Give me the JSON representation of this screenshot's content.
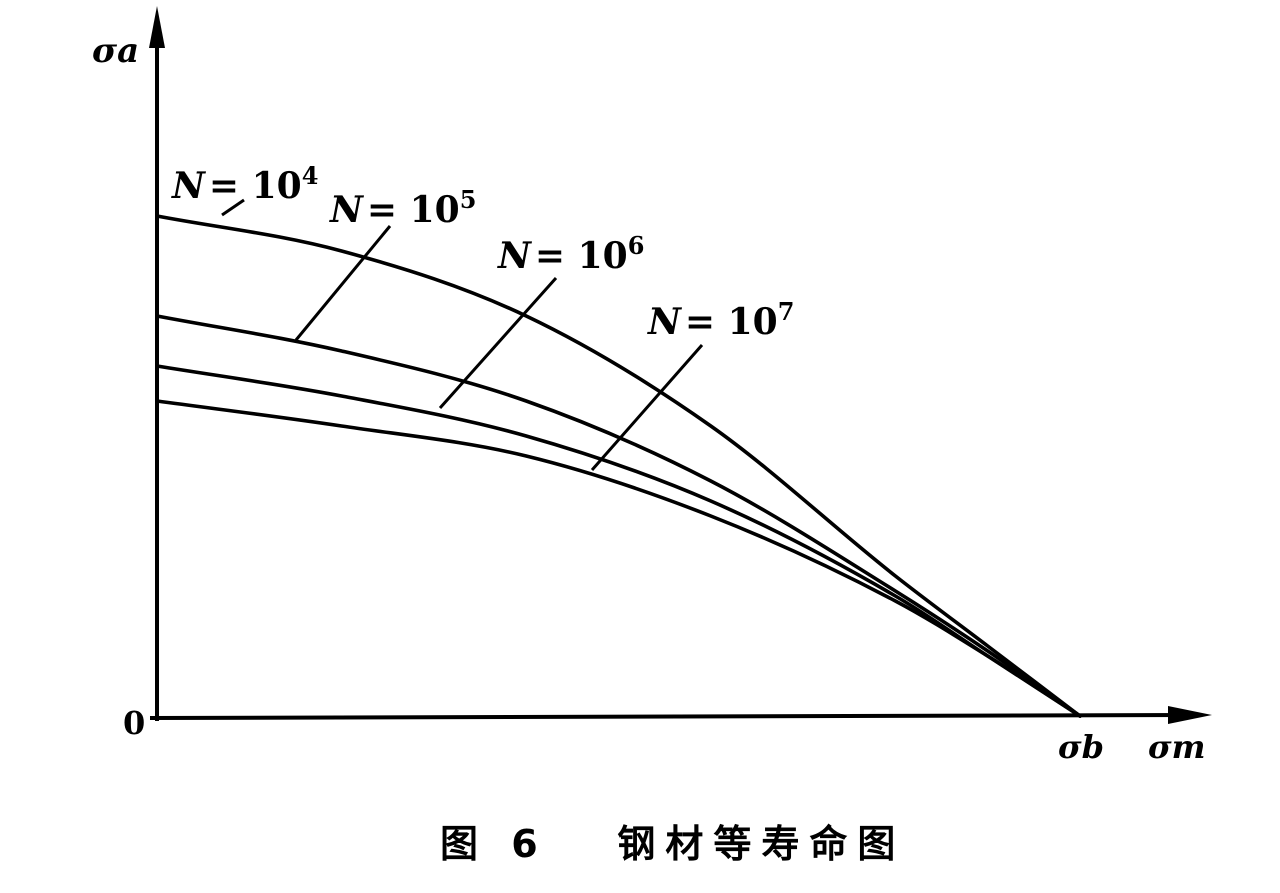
{
  "chart_data": {
    "type": "line",
    "caption": "图 6   钢材等寿命图",
    "xlabel": "σm",
    "ylabel": "σa",
    "origin_label": "0",
    "x_marker": {
      "label": "σb",
      "x": 1.0
    },
    "series": [
      {
        "name": "N = 10⁴",
        "label_base": "N",
        "label_eq": "= 10",
        "label_exp": "4",
        "x": [
          0,
          0.2,
          0.4,
          0.6,
          0.8,
          0.9,
          1.0
        ],
        "y": [
          1.0,
          0.93,
          0.8,
          0.58,
          0.28,
          0.14,
          0
        ]
      },
      {
        "name": "N = 10⁵",
        "label_base": "N",
        "label_eq": "= 10",
        "label_exp": "5",
        "x": [
          0,
          0.2,
          0.4,
          0.6,
          0.8,
          0.9,
          1.0
        ],
        "y": [
          0.8,
          0.73,
          0.63,
          0.47,
          0.25,
          0.13,
          0
        ]
      },
      {
        "name": "N = 10⁶",
        "label_base": "N",
        "label_eq": "= 10",
        "label_exp": "6",
        "x": [
          0,
          0.2,
          0.4,
          0.6,
          0.8,
          0.9,
          1.0
        ],
        "y": [
          0.7,
          0.64,
          0.56,
          0.43,
          0.24,
          0.12,
          0
        ]
      },
      {
        "name": "N = 10⁷",
        "label_base": "N",
        "label_eq": "= 10",
        "label_exp": "7",
        "x": [
          0,
          0.2,
          0.4,
          0.6,
          0.8,
          0.9,
          1.0
        ],
        "y": [
          0.63,
          0.58,
          0.52,
          0.4,
          0.23,
          0.12,
          0
        ]
      }
    ]
  }
}
